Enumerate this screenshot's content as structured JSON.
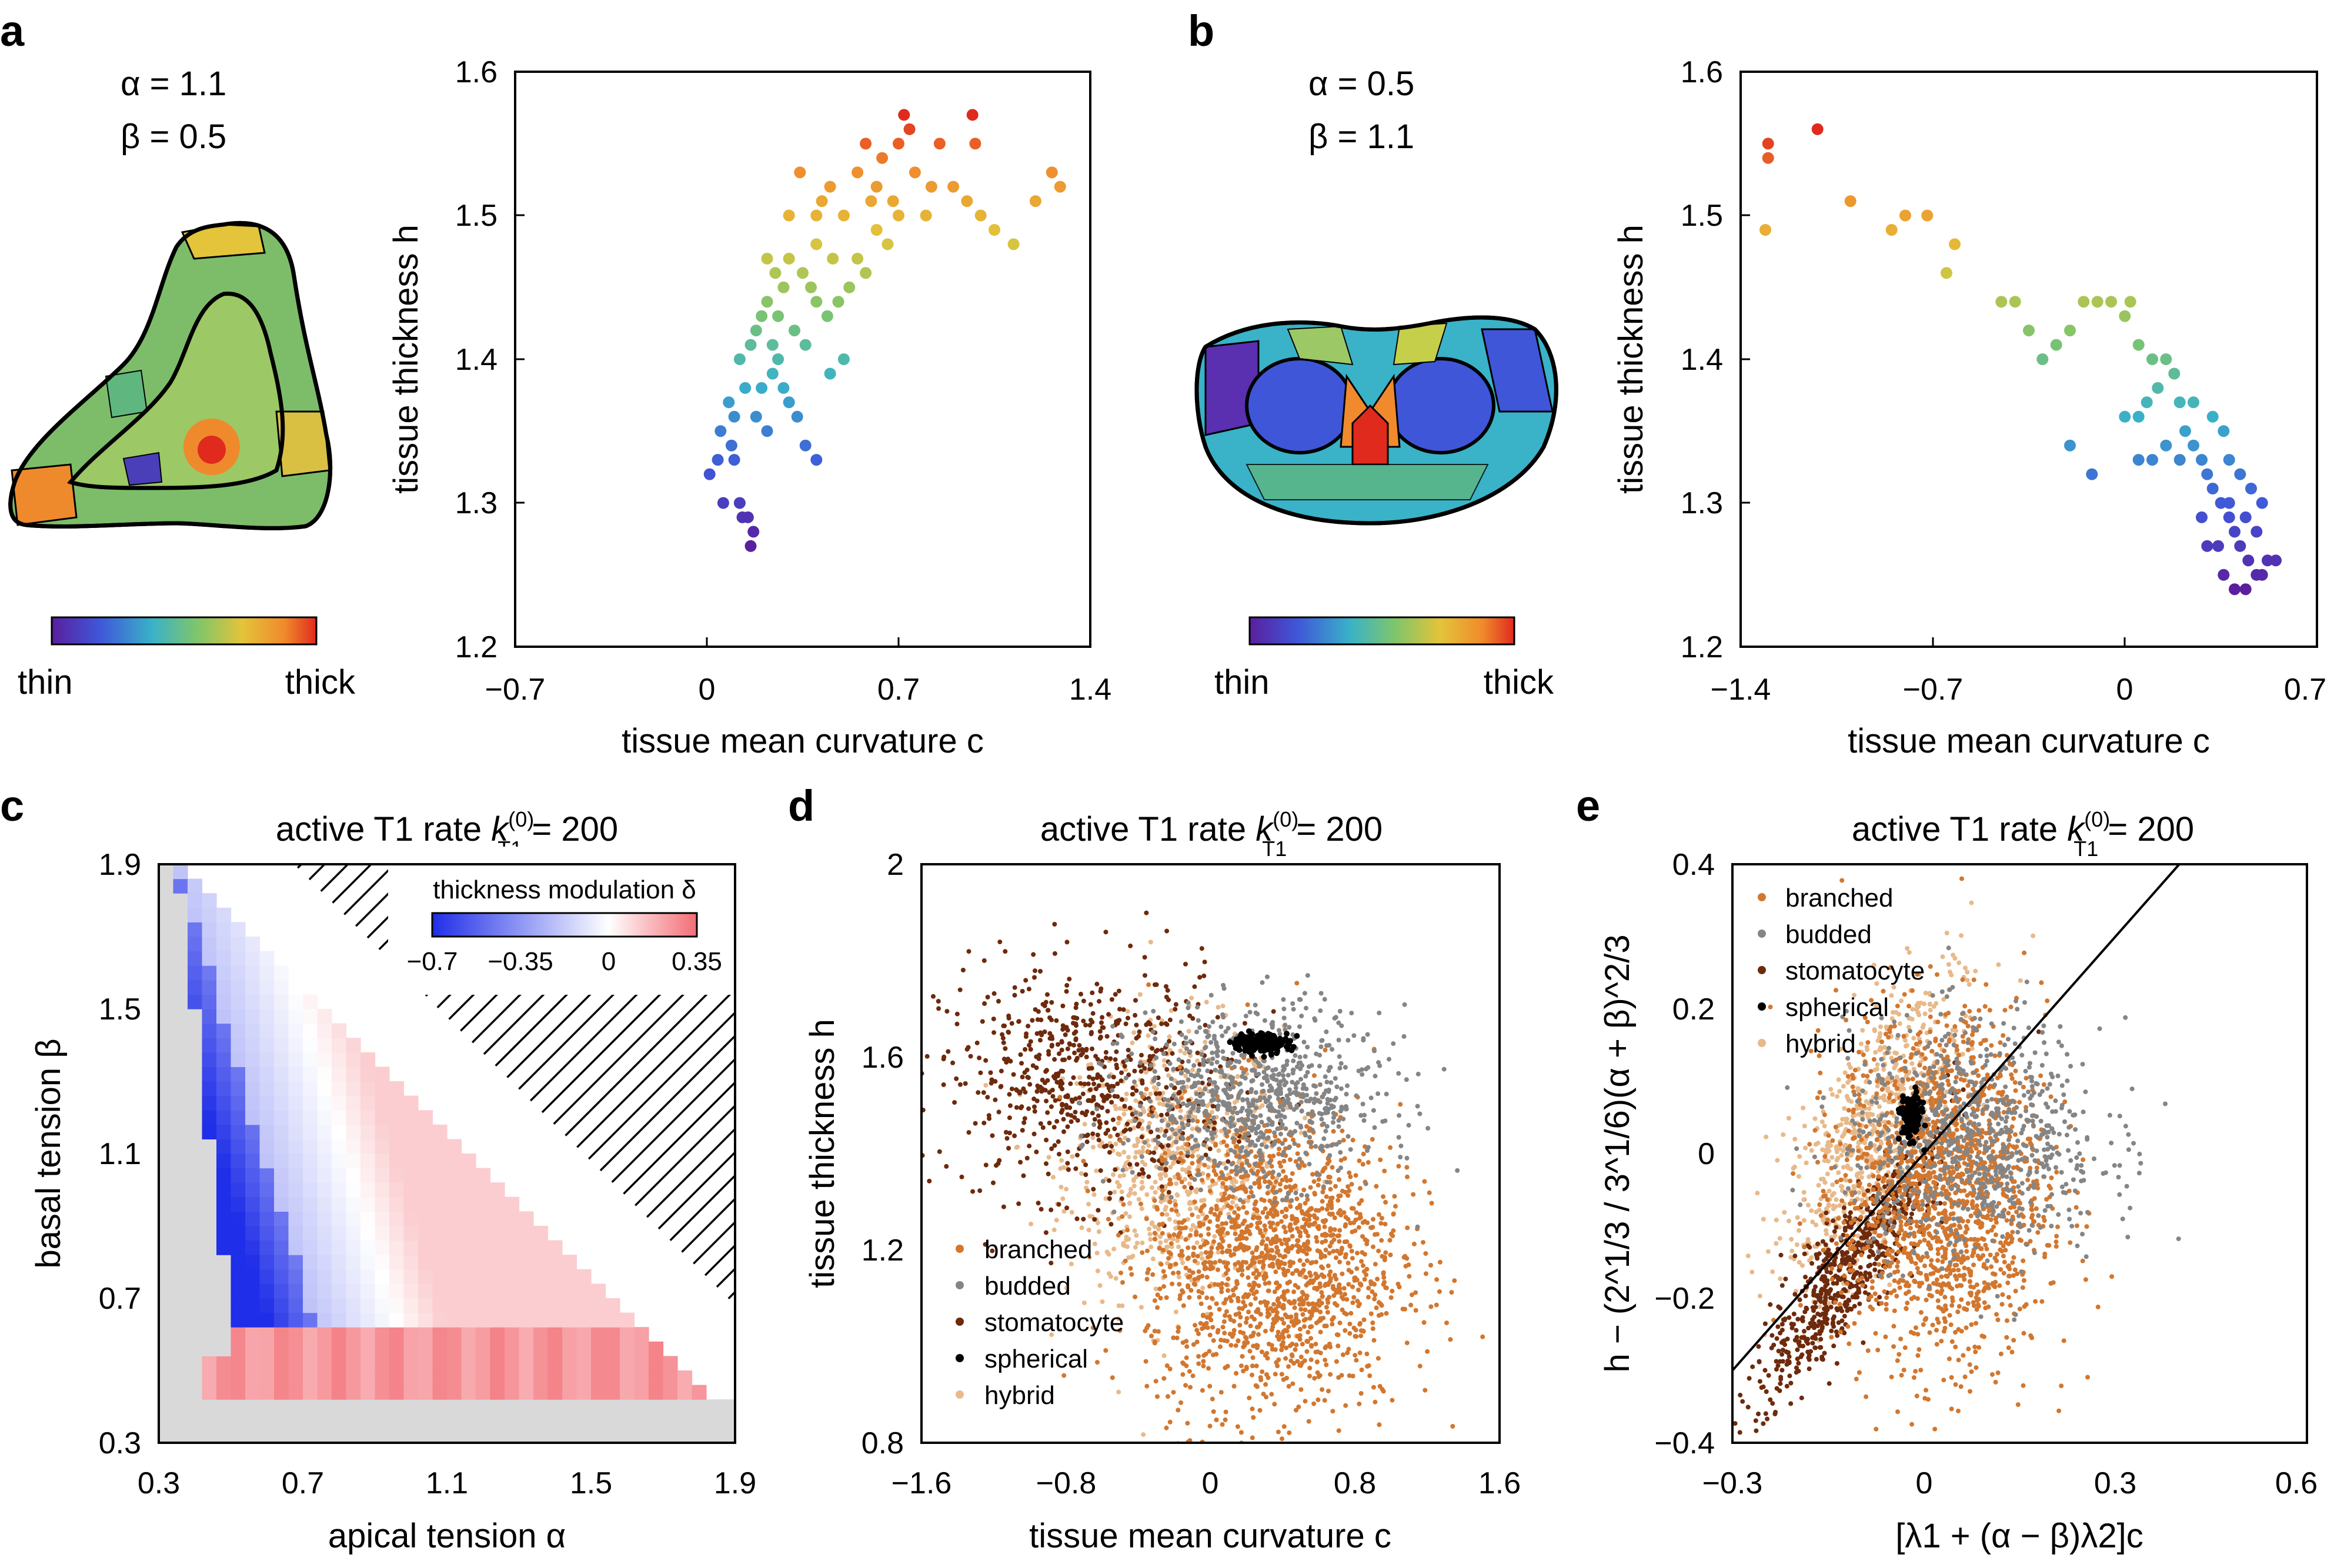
{
  "panels": {
    "a": {
      "label": "a",
      "params": {
        "alpha": "α = 1.1",
        "beta": "β = 0.5"
      },
      "colorbar": {
        "low": "thin",
        "high": "thick"
      }
    },
    "b": {
      "label": "b",
      "params": {
        "alpha": "α = 0.5",
        "beta": "β = 1.1"
      },
      "colorbar": {
        "low": "thin",
        "high": "thick"
      }
    },
    "c": {
      "label": "c",
      "title_main": "active T1 rate ",
      "title_k": "k",
      "title_sup": "(0)",
      "title_sub": "T1",
      "title_eq": " = 200"
    },
    "d": {
      "label": "d",
      "title_main": "active T1 rate ",
      "title_k": "k",
      "title_sup": "(0)",
      "title_sub": "T1",
      "title_eq": " = 200"
    },
    "e": {
      "label": "e",
      "title_main": "active T1 rate ",
      "title_k": "k",
      "title_sup": "(0)",
      "title_sub": "T1",
      "title_eq": " = 200"
    }
  },
  "colors": {
    "branched": "#d2772f",
    "budded": "#858585",
    "stomatocyte": "#6e2a0c",
    "spherical": "#000000",
    "hybrid": "#e8b98a",
    "heat_neg": "#1f2ee8",
    "heat_pos": "#f26d75",
    "heat_na": "#d9d9d9"
  },
  "chart_data": [
    {
      "id": "a",
      "type": "scatter",
      "xlabel": "tissue mean curvature c",
      "ylabel": "tissue thickness h",
      "xlim": [
        -0.7,
        1.4
      ],
      "ylim": [
        1.2,
        1.6
      ],
      "xticks": [
        "−0.7",
        "0",
        "0.7",
        "1.4"
      ],
      "yticks": [
        "1.2",
        "1.3",
        "1.4",
        "1.5",
        "1.6"
      ],
      "colored_by": "h",
      "points": [
        [
          0.01,
          1.32
        ],
        [
          0.04,
          1.33
        ],
        [
          0.06,
          1.3
        ],
        [
          0.1,
          1.33
        ],
        [
          0.12,
          1.3
        ],
        [
          0.13,
          1.29
        ],
        [
          0.17,
          1.28
        ],
        [
          0.16,
          1.27
        ],
        [
          0.15,
          1.29
        ],
        [
          0.05,
          1.35
        ],
        [
          0.08,
          1.37
        ],
        [
          0.1,
          1.36
        ],
        [
          0.14,
          1.38
        ],
        [
          0.12,
          1.4
        ],
        [
          0.16,
          1.41
        ],
        [
          0.18,
          1.42
        ],
        [
          0.2,
          1.43
        ],
        [
          0.22,
          1.44
        ],
        [
          0.24,
          1.41
        ],
        [
          0.26,
          1.4
        ],
        [
          0.28,
          1.38
        ],
        [
          0.3,
          1.37
        ],
        [
          0.33,
          1.36
        ],
        [
          0.36,
          1.34
        ],
        [
          0.4,
          1.33
        ],
        [
          0.22,
          1.47
        ],
        [
          0.25,
          1.46
        ],
        [
          0.28,
          1.45
        ],
        [
          0.3,
          1.47
        ],
        [
          0.35,
          1.46
        ],
        [
          0.38,
          1.45
        ],
        [
          0.4,
          1.44
        ],
        [
          0.44,
          1.43
        ],
        [
          0.48,
          1.44
        ],
        [
          0.52,
          1.45
        ],
        [
          0.55,
          1.47
        ],
        [
          0.58,
          1.46
        ],
        [
          0.62,
          1.49
        ],
        [
          0.66,
          1.48
        ],
        [
          0.7,
          1.5
        ],
        [
          0.4,
          1.5
        ],
        [
          0.42,
          1.51
        ],
        [
          0.45,
          1.52
        ],
        [
          0.5,
          1.5
        ],
        [
          0.55,
          1.53
        ],
        [
          0.6,
          1.51
        ],
        [
          0.64,
          1.54
        ],
        [
          0.7,
          1.55
        ],
        [
          0.74,
          1.56
        ],
        [
          0.72,
          1.57
        ],
        [
          0.76,
          1.53
        ],
        [
          0.82,
          1.52
        ],
        [
          0.85,
          1.55
        ],
        [
          0.9,
          1.52
        ],
        [
          0.95,
          1.51
        ],
        [
          0.97,
          1.57
        ],
        [
          0.98,
          1.55
        ],
        [
          1.0,
          1.5
        ],
        [
          1.05,
          1.49
        ],
        [
          1.12,
          1.48
        ],
        [
          1.2,
          1.51
        ],
        [
          1.26,
          1.53
        ],
        [
          1.29,
          1.52
        ],
        [
          0.2,
          1.38
        ],
        [
          0.24,
          1.39
        ],
        [
          0.18,
          1.36
        ],
        [
          0.22,
          1.35
        ],
        [
          0.09,
          1.34
        ],
        [
          0.26,
          1.43
        ],
        [
          0.32,
          1.42
        ],
        [
          0.36,
          1.41
        ],
        [
          0.45,
          1.39
        ],
        [
          0.5,
          1.4
        ],
        [
          0.3,
          1.5
        ],
        [
          0.34,
          1.53
        ],
        [
          0.4,
          1.48
        ],
        [
          0.46,
          1.47
        ],
        [
          0.58,
          1.55
        ],
        [
          0.62,
          1.52
        ],
        [
          0.68,
          1.51
        ],
        [
          0.8,
          1.5
        ]
      ]
    },
    {
      "id": "b",
      "type": "scatter",
      "xlabel": "tissue mean curvature c",
      "ylabel": "tissue thickness h",
      "xlim": [
        -1.4,
        0.7
      ],
      "ylim": [
        1.2,
        1.6
      ],
      "xticks": [
        "−1.4",
        "−0.7",
        "0",
        "0.7"
      ],
      "yticks": [
        "1.2",
        "1.3",
        "1.4",
        "1.5",
        "1.6"
      ],
      "colored_by": "h",
      "points": [
        [
          -1.3,
          1.55
        ],
        [
          -1.3,
          1.54
        ],
        [
          -1.31,
          1.49
        ],
        [
          -1.12,
          1.56
        ],
        [
          -1.0,
          1.51
        ],
        [
          -0.85,
          1.49
        ],
        [
          -0.8,
          1.5
        ],
        [
          -0.72,
          1.5
        ],
        [
          -0.62,
          1.48
        ],
        [
          -0.65,
          1.46
        ],
        [
          -0.45,
          1.44
        ],
        [
          -0.4,
          1.44
        ],
        [
          -0.35,
          1.42
        ],
        [
          -0.3,
          1.4
        ],
        [
          -0.25,
          1.41
        ],
        [
          -0.2,
          1.42
        ],
        [
          -0.15,
          1.44
        ],
        [
          -0.1,
          1.44
        ],
        [
          -0.05,
          1.44
        ],
        [
          0.0,
          1.43
        ],
        [
          0.02,
          1.44
        ],
        [
          0.05,
          1.41
        ],
        [
          0.1,
          1.4
        ],
        [
          0.15,
          1.4
        ],
        [
          0.18,
          1.39
        ],
        [
          0.12,
          1.38
        ],
        [
          0.08,
          1.37
        ],
        [
          0.05,
          1.36
        ],
        [
          0.0,
          1.36
        ],
        [
          0.2,
          1.37
        ],
        [
          0.22,
          1.35
        ],
        [
          0.25,
          1.34
        ],
        [
          0.28,
          1.33
        ],
        [
          0.3,
          1.32
        ],
        [
          0.2,
          1.33
        ],
        [
          0.15,
          1.34
        ],
        [
          0.1,
          1.33
        ],
        [
          0.05,
          1.33
        ],
        [
          0.32,
          1.31
        ],
        [
          0.35,
          1.3
        ],
        [
          0.38,
          1.29
        ],
        [
          0.4,
          1.28
        ],
        [
          0.42,
          1.27
        ],
        [
          0.45,
          1.26
        ],
        [
          0.48,
          1.25
        ],
        [
          0.5,
          1.25
        ],
        [
          0.44,
          1.24
        ],
        [
          0.4,
          1.24
        ],
        [
          0.36,
          1.25
        ],
        [
          0.3,
          1.27
        ],
        [
          0.28,
          1.29
        ],
        [
          0.48,
          1.28
        ],
        [
          0.5,
          1.3
        ],
        [
          0.46,
          1.31
        ],
        [
          0.42,
          1.32
        ],
        [
          0.38,
          1.33
        ],
        [
          -0.2,
          1.34
        ],
        [
          -0.12,
          1.32
        ],
        [
          0.25,
          1.37
        ],
        [
          0.32,
          1.36
        ],
        [
          0.36,
          1.35
        ],
        [
          0.34,
          1.27
        ],
        [
          0.52,
          1.26
        ],
        [
          0.55,
          1.26
        ],
        [
          0.44,
          1.29
        ],
        [
          0.38,
          1.3
        ]
      ]
    },
    {
      "id": "c",
      "type": "heatmap",
      "title": "active T1 rate k_T1^(0) = 200",
      "xlabel": "apical tension α",
      "ylabel": "basal tension β",
      "xlim": [
        0.3,
        1.9
      ],
      "ylim": [
        0.3,
        1.9
      ],
      "xticks": [
        "0.3",
        "0.7",
        "1.1",
        "1.5",
        "1.9"
      ],
      "yticks": [
        "0.3",
        "0.7",
        "1.1",
        "1.5",
        "1.9"
      ],
      "colorbar_label": "thickness modulation δ",
      "colorbar_ticks": [
        "−0.7",
        "−0.35",
        "0",
        "0.35"
      ],
      "clim": [
        -0.7,
        0.35
      ],
      "hatched_region": "no data"
    },
    {
      "id": "d",
      "type": "scatter",
      "title": "active T1 rate k_T1^(0) = 200",
      "xlabel": "tissue mean curvature c",
      "ylabel": "tissue thickness h",
      "xlim": [
        -1.6,
        1.6
      ],
      "ylim": [
        0.8,
        2.0
      ],
      "xticks": [
        "−1.6",
        "−0.8",
        "0",
        "0.8",
        "1.6"
      ],
      "yticks": [
        "0.8",
        "1.2",
        "1.6",
        "2"
      ],
      "legend": [
        "branched",
        "budded",
        "stomatocyte",
        "spherical",
        "hybrid"
      ],
      "legend_position": "bottom-left",
      "series": [
        {
          "name": "branched",
          "center": [
            0.35,
            1.18
          ],
          "spread": [
            0.35,
            0.16
          ]
        },
        {
          "name": "budded",
          "center": [
            0.25,
            1.52
          ],
          "spread": [
            0.35,
            0.09
          ]
        },
        {
          "name": "stomatocyte",
          "center": [
            -0.7,
            1.55
          ],
          "spread": [
            0.4,
            0.12
          ]
        },
        {
          "name": "spherical",
          "center": [
            0.28,
            1.63
          ],
          "spread": [
            0.08,
            0.01
          ]
        },
        {
          "name": "hybrid",
          "center": [
            -0.2,
            1.38
          ],
          "spread": [
            0.3,
            0.14
          ]
        }
      ]
    },
    {
      "id": "e",
      "type": "scatter",
      "title": "active T1 rate k_T1^(0) = 200",
      "xlabel": "[λ1 + (α − β)λ2]c",
      "ylabel": "h − (2^1/3 / 3^1/6)(α + β)^2/3",
      "xlim": [
        -0.3,
        0.6
      ],
      "ylim": [
        -0.4,
        0.4
      ],
      "xticks": [
        "−0.3",
        "0",
        "0.3",
        "0.6"
      ],
      "yticks": [
        "−0.4",
        "−0.2",
        "0",
        "0.2",
        "0.4"
      ],
      "legend": [
        "branched",
        "budded",
        "stomatocyte",
        "spherical",
        "hybrid"
      ],
      "legend_position": "top-left",
      "fit_line": {
        "x": [
          -0.3,
          0.4
        ],
        "y": [
          -0.3,
          0.4
        ]
      },
      "series": [
        {
          "name": "branched",
          "center": [
            0.03,
            -0.05
          ],
          "spread": [
            0.08,
            0.12
          ]
        },
        {
          "name": "budded",
          "center": [
            0.08,
            0.02
          ],
          "spread": [
            0.1,
            0.08
          ]
        },
        {
          "name": "stomatocyte",
          "center": [
            -0.12,
            -0.16
          ],
          "spread": [
            0.07,
            0.06
          ]
        },
        {
          "name": "spherical",
          "center": [
            -0.02,
            0.05
          ],
          "spread": [
            0.008,
            0.015
          ]
        },
        {
          "name": "hybrid",
          "center": [
            -0.08,
            0.03
          ],
          "spread": [
            0.07,
            0.08
          ]
        }
      ]
    }
  ]
}
